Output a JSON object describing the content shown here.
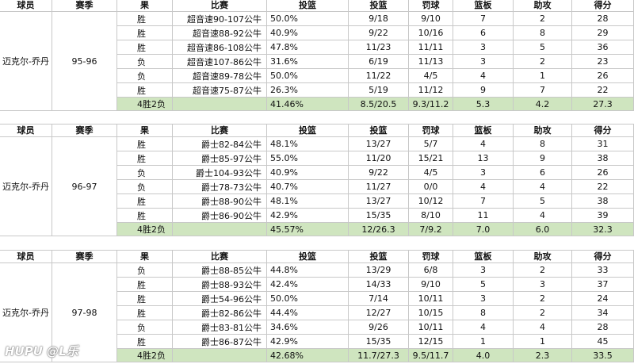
{
  "tables": [
    {
      "header": [
        "球员",
        "赛季",
        "果",
        "比赛",
        "投篮",
        "投篮",
        "罚球",
        "篮板",
        "助攻",
        "得分"
      ],
      "player": "迈克尔-乔丹",
      "season": "95-96",
      "rows": [
        [
          "胜",
          "超音速90-107公牛",
          "50.0%",
          "9/18",
          "9/10",
          "7",
          "2",
          "28"
        ],
        [
          "胜",
          "超音速88-92公牛",
          "40.9%",
          "9/22",
          "10/16",
          "6",
          "8",
          "29"
        ],
        [
          "胜",
          "超音速86-108公牛",
          "47.8%",
          "11/23",
          "11/11",
          "3",
          "5",
          "36"
        ],
        [
          "负",
          "超音速107-86公牛",
          "31.6%",
          "6/19",
          "11/13",
          "3",
          "2",
          "23"
        ],
        [
          "负",
          "超音速89-78公牛",
          "50.0%",
          "11/22",
          "4/5",
          "4",
          "1",
          "26"
        ],
        [
          "胜",
          "超音速75-87公牛",
          "26.3%",
          "5/19",
          "11/12",
          "9",
          "7",
          "22"
        ]
      ],
      "summary": {
        "record": "4胜2负",
        "stats": [
          "41.46%",
          "8.5/20.5",
          "9.3/11.2",
          "5.3",
          "4.2",
          "27.3"
        ]
      }
    },
    {
      "header": [
        "球员",
        "赛季",
        "果",
        "比赛",
        "投篮",
        "投篮",
        "罚球",
        "篮板",
        "助攻",
        "得分"
      ],
      "player": "迈克尔-乔丹",
      "season": "96-97",
      "rows": [
        [
          "胜",
          "爵士82-84公牛",
          "48.1%",
          "13/27",
          "5/7",
          "4",
          "8",
          "31"
        ],
        [
          "胜",
          "爵士85-97公牛",
          "55.0%",
          "11/20",
          "15/21",
          "13",
          "9",
          "38"
        ],
        [
          "负",
          "爵士104-93公牛",
          "40.9%",
          "9/22",
          "4/5",
          "3",
          "6",
          "26"
        ],
        [
          "负",
          "爵士78-73公牛",
          "40.7%",
          "11/27",
          "0/0",
          "4",
          "4",
          "22"
        ],
        [
          "胜",
          "爵士88-90公牛",
          "48.1%",
          "13/27",
          "10/12",
          "7",
          "5",
          "38"
        ],
        [
          "胜",
          "爵士86-90公牛",
          "42.9%",
          "15/35",
          "8/10",
          "11",
          "4",
          "39"
        ]
      ],
      "summary": {
        "record": "4胜2负",
        "stats": [
          "45.57%",
          "12/26.3",
          "7/9.2",
          "7.0",
          "6.0",
          "32.3"
        ]
      }
    },
    {
      "header": [
        "球员",
        "赛季",
        "果",
        "比赛",
        "投篮",
        "投篮",
        "罚球",
        "篮板",
        "助攻",
        "得分"
      ],
      "player": "迈克尔-乔丹",
      "season": "97-98",
      "rows": [
        [
          "负",
          "爵士88-85公牛",
          "44.8%",
          "13/29",
          "6/8",
          "3",
          "2",
          "33"
        ],
        [
          "胜",
          "爵士88-93公牛",
          "42.4%",
          "14/33",
          "9/10",
          "5",
          "3",
          "37"
        ],
        [
          "胜",
          "爵士54-96公牛",
          "50.0%",
          "7/14",
          "10/11",
          "3",
          "2",
          "24"
        ],
        [
          "胜",
          "爵士82-86公牛",
          "44.4%",
          "12/27",
          "10/15",
          "8",
          "2",
          "34"
        ],
        [
          "负",
          "爵士83-81公牛",
          "34.6%",
          "9/26",
          "10/11",
          "4",
          "4",
          "28"
        ],
        [
          "胜",
          "爵士86-87公牛",
          "42.9%",
          "15/35",
          "12/15",
          "1",
          "1",
          "45"
        ]
      ],
      "summary": {
        "record": "4胜2负",
        "stats": [
          "42.68%",
          "11.7/27.3",
          "9.5/11.7",
          "4.0",
          "2.3",
          "33.5"
        ]
      }
    }
  ],
  "watermark": "HUPU @L乐"
}
